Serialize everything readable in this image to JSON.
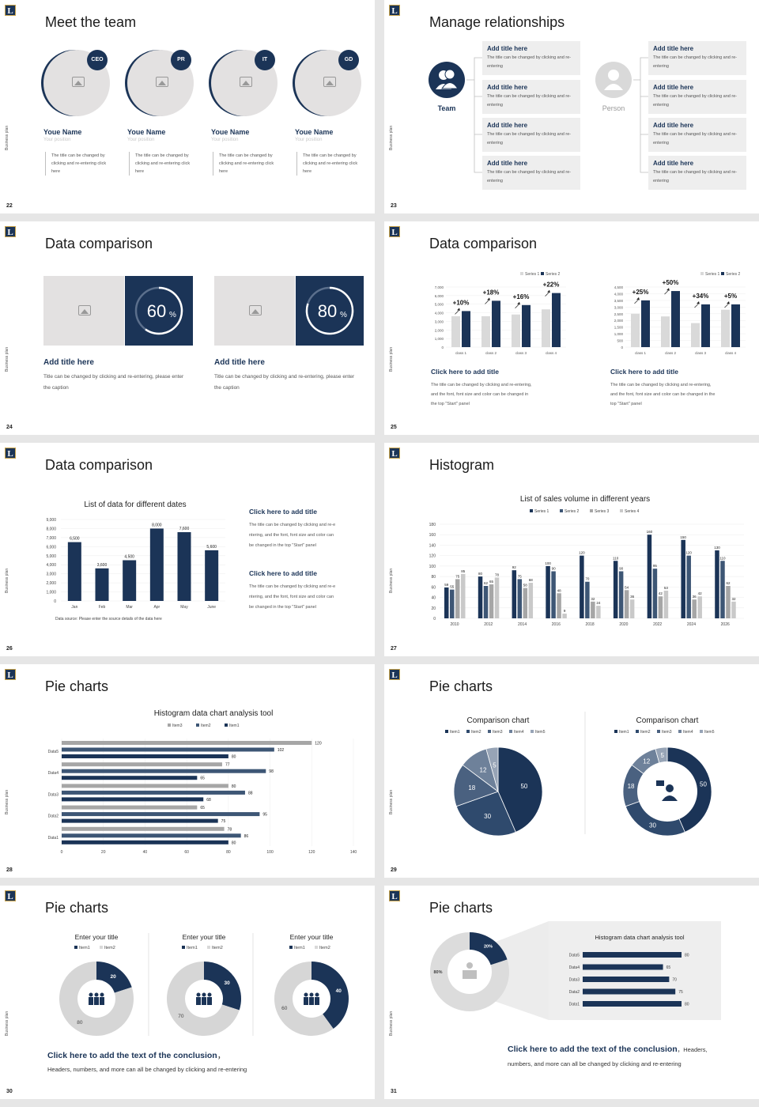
{
  "colors": {
    "navy": "#1b3457",
    "mid": "#3d5675",
    "gray": "#a6a6a6",
    "light": "#d9d9d9",
    "bg": "#e6e6e6"
  },
  "side_label": "Business plan",
  "logo_letter": "L",
  "s22": {
    "num": "22",
    "title": "Meet the team",
    "members": [
      {
        "badge": "CEO",
        "name": "Youe Name",
        "position": "Your position",
        "desc": "The title can be changed by clicking and re-entering click here"
      },
      {
        "badge": "PR",
        "name": "Youe Name",
        "position": "Your position",
        "desc": "The title can be changed by clicking and re-entering click here"
      },
      {
        "badge": "IT",
        "name": "Youe Name",
        "position": "Your position",
        "desc": "The title can be changed by clicking and re-entering click here"
      },
      {
        "badge": "GD",
        "name": "Youe Name",
        "position": "Your position",
        "desc": "The title can be changed by clicking and re-entering click here"
      }
    ]
  },
  "s23": {
    "num": "23",
    "title": "Manage relationships",
    "left_label": "Team",
    "right_label": "Person",
    "box_title": "Add title here",
    "box_body": "The title can be changed by clicking and re-entering"
  },
  "s24": {
    "num": "24",
    "title": "Data comparison",
    "cards": [
      {
        "percent": 60,
        "pct_text": "60",
        "title": "Add title here",
        "body": "Title can be changed by clicking and re-entering, please enter the caption"
      },
      {
        "percent": 80,
        "pct_text": "80",
        "title": "Add title here",
        "body": "Title can be changed by clicking and re-entering, please enter the caption"
      }
    ],
    "pct_sign": "%"
  },
  "s25": {
    "num": "25",
    "title": "Data comparison",
    "legend": [
      "Series 1",
      "Series 2"
    ],
    "charts": [
      {
        "ticks": [
          "7,000",
          "6,000",
          "5,000",
          "4,000",
          "3,000",
          "2,000",
          "1,000",
          "0"
        ],
        "max": 7000,
        "categories": [
          "class 1",
          "class 2",
          "class 3",
          "class 4"
        ],
        "s1": [
          3600,
          3600,
          3800,
          4400
        ],
        "s2": [
          4200,
          5400,
          4900,
          6300
        ],
        "labels": [
          "+10%",
          "+18%",
          "+16%",
          "+22%"
        ],
        "caption_title": "Click here to add title",
        "caption_body": [
          "The title can be changed by clicking and re-entering,",
          "and the font, font size and color can be changed in",
          "the top \"Start\" panel"
        ]
      },
      {
        "ticks": [
          "4,500",
          "4,000",
          "3,500",
          "3,000",
          "2,500",
          "2,000",
          "1,500",
          "1,000",
          "500",
          "0"
        ],
        "max": 4500,
        "categories": [
          "class 1",
          "class 2",
          "class 3",
          "class 4"
        ],
        "s1": [
          2500,
          2300,
          1800,
          2800
        ],
        "s2": [
          3500,
          4200,
          3200,
          3200
        ],
        "labels": [
          "+25%",
          "+50%",
          "+34%",
          "+5%"
        ],
        "caption_title": "Click here to add title",
        "caption_body": [
          "The title can be changed by clicking and re-entering,",
          "and the font, font size and color can be changed in the",
          "top \"Start\" panel"
        ]
      }
    ]
  },
  "s26": {
    "num": "26",
    "title": "Data comparison",
    "chart_title": "List of data for different dates",
    "ticks": [
      "9,000",
      "8,000",
      "7,000",
      "6,000",
      "5,000",
      "4,000",
      "3,000",
      "2,000",
      "1,000",
      "0"
    ],
    "categories": [
      "Jan",
      "Feb",
      "Mar",
      "Apr",
      "May",
      "June"
    ],
    "values": [
      6500,
      3600,
      4500,
      8000,
      7600,
      5600
    ],
    "value_labels": [
      "6,500",
      "3,600",
      "4,500",
      "8,000",
      "7,600",
      "5,600"
    ],
    "source": "Data source: Please enter the source details of the data here",
    "blocks": [
      {
        "title": "Click here to add title",
        "body": [
          "The title can be changed by clicking and re-e",
          "ntering, and the font, font size and color can",
          "be changed in the top \"Start\" panel"
        ]
      },
      {
        "title": "Click here to add title",
        "body": [
          "The title can be changed by clicking and re-e",
          "ntering, and the font, font size and color can",
          "be changed in the top \"Start\" panel"
        ]
      }
    ]
  },
  "s27": {
    "num": "27",
    "title": "Histogram",
    "chart_title": "List of sales volume in different years",
    "legend": [
      "Series 1",
      "Series 2",
      "Series 3",
      "Series 4"
    ],
    "ticks": [
      "180",
      "160",
      "140",
      "120",
      "100",
      "80",
      "60",
      "40",
      "20",
      "0"
    ],
    "years": [
      "2010",
      "2012",
      "2014",
      "2016",
      "2018",
      "2020",
      "2022",
      "2024",
      "2026"
    ],
    "data": [
      [
        59,
        55,
        75,
        85
      ],
      [
        80,
        62,
        65,
        78
      ],
      [
        92,
        75,
        58,
        68
      ],
      [
        100,
        90,
        48,
        9
      ],
      [
        120,
        70,
        32,
        24
      ],
      [
        110,
        90,
        54,
        36
      ],
      [
        160,
        95,
        42,
        53
      ],
      [
        150,
        120,
        36,
        42
      ],
      [
        130,
        110,
        62,
        32
      ]
    ]
  },
  "s28": {
    "num": "28",
    "title": "Pie charts",
    "chart_title": "Histogram data chart analysis tool",
    "legend": [
      "Item3",
      "Item2",
      "Item1"
    ],
    "categories": [
      "Data5",
      "Data4",
      "Data3",
      "Data2",
      "Data1"
    ],
    "item3": [
      120,
      77,
      80,
      65,
      78
    ],
    "item2": [
      102,
      98,
      88,
      95,
      86
    ],
    "item1": [
      80,
      65,
      68,
      75,
      80
    ],
    "ticks": [
      "0",
      "20",
      "40",
      "60",
      "80",
      "100",
      "120",
      "140"
    ]
  },
  "s29": {
    "num": "29",
    "title": "Pie charts",
    "chart_title": "Comparison chart",
    "legend": [
      "Item1",
      "Item2",
      "Item3",
      "Item4",
      "Item5"
    ],
    "values": [
      50,
      30,
      18,
      12,
      5
    ],
    "labels": [
      "50",
      "30",
      "18",
      "12",
      "5"
    ]
  },
  "s30": {
    "num": "30",
    "title": "Pie charts",
    "chart_title": "Enter your title",
    "legend": [
      "Item1",
      "Item2"
    ],
    "pies": [
      {
        "a": 20,
        "b": 80
      },
      {
        "a": 30,
        "b": 70
      },
      {
        "a": 40,
        "b": 60
      }
    ],
    "conclusion": "Click here to add the text of the conclusion",
    "conclusion_tail": "，",
    "sub": "Headers, numbers, and more can all be changed by clicking and re-entering"
  },
  "s31": {
    "num": "31",
    "title": "Pie charts",
    "pie": {
      "a": 20,
      "b": 80,
      "a_label": "20%",
      "b_label": "80%"
    },
    "chart_title": "Histogram data chart analysis tool",
    "categories": [
      "Data5",
      "Data4",
      "Data3",
      "Data2",
      "Data1"
    ],
    "values": [
      80,
      65,
      70,
      75,
      80
    ],
    "conclusion": "Click here to add the text of the conclusion",
    "conclusion_tail": "，Headers,",
    "sub": "numbers, and more can all be changed by clicking and re-entering"
  }
}
